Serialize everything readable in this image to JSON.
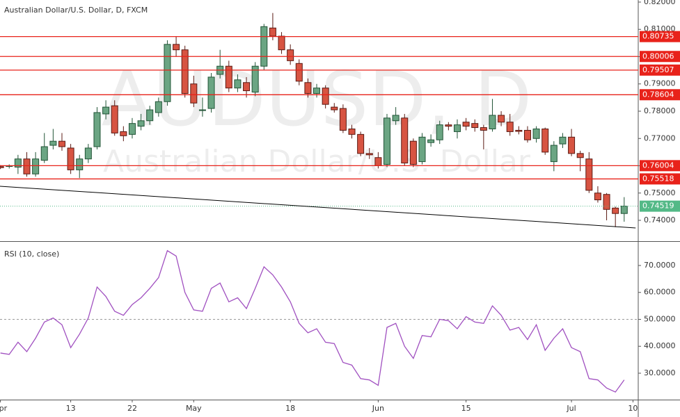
{
  "chart_data": [
    {
      "type": "candlestick",
      "title": "Australian Dollar/U.S. Dollar, D, FXCM",
      "watermark": "AUDUSD, D",
      "watermark_subtitle": "Australian Dollar/U.S. Dollar",
      "xlim": [
        -0.05,
        72.6
      ],
      "ylim": [
        0.73236,
        0.82076
      ],
      "yticks": [
        {
          "value": 0.82,
          "label": "0.82000"
        },
        {
          "value": 0.81,
          "label": "0.81000"
        },
        {
          "value": 0.8,
          "label": "0.80000"
        },
        {
          "value": 0.79,
          "label": "0.79000"
        },
        {
          "value": 0.78,
          "label": "0.78000"
        },
        {
          "value": 0.77,
          "label": "0.77000"
        },
        {
          "value": 0.76,
          "label": "0.76000"
        },
        {
          "value": 0.75,
          "label": "0.75000"
        },
        {
          "value": 0.74,
          "label": "0.74000"
        }
      ],
      "up_color": "#6ba583",
      "down_color": "#d75442",
      "open": [
        0.7597,
        0.7598,
        0.7595,
        0.7625,
        0.757,
        0.762,
        0.7675,
        0.769,
        0.7665,
        0.7585,
        0.7625,
        0.767,
        0.779,
        0.782,
        0.7725,
        0.7715,
        0.7745,
        0.7765,
        0.7795,
        0.7835,
        0.8045,
        0.8025,
        0.79,
        0.7805,
        0.781,
        0.7935,
        0.7965,
        0.7885,
        0.7905,
        0.787,
        0.7965,
        0.8105,
        0.8075,
        0.8025,
        0.7975,
        0.7905,
        0.7865,
        0.7885,
        0.7815,
        0.781,
        0.7735,
        0.7715,
        0.7645,
        0.763,
        0.7605,
        0.7765,
        0.7775,
        0.769,
        0.7615,
        0.7685,
        0.7695,
        0.775,
        0.7725,
        0.776,
        0.7755,
        0.774,
        0.7735,
        0.7785,
        0.776,
        0.773,
        0.773,
        0.77,
        0.7735,
        0.7615,
        0.768,
        0.7705,
        0.7645,
        0.7625,
        0.75,
        0.7495,
        0.7445,
        0.7425
      ],
      "high": [
        0.7602,
        0.7605,
        0.764,
        0.765,
        0.765,
        0.772,
        0.7735,
        0.772,
        0.768,
        0.764,
        0.768,
        0.7815,
        0.784,
        0.784,
        0.7745,
        0.7775,
        0.779,
        0.782,
        0.785,
        0.806,
        0.8075,
        0.804,
        0.793,
        0.785,
        0.794,
        0.8025,
        0.7985,
        0.7935,
        0.7925,
        0.798,
        0.812,
        0.816,
        0.809,
        0.8045,
        0.799,
        0.792,
        0.79,
        0.7895,
        0.783,
        0.7825,
        0.775,
        0.7725,
        0.7665,
        0.765,
        0.779,
        0.7815,
        0.779,
        0.77,
        0.772,
        0.7715,
        0.7765,
        0.776,
        0.777,
        0.7775,
        0.777,
        0.775,
        0.7845,
        0.78,
        0.779,
        0.7745,
        0.7745,
        0.7745,
        0.774,
        0.769,
        0.772,
        0.7735,
        0.7655,
        0.765,
        0.7525,
        0.75,
        0.745,
        0.7485
      ],
      "low": [
        0.7588,
        0.759,
        0.757,
        0.756,
        0.756,
        0.761,
        0.766,
        0.7655,
        0.757,
        0.7555,
        0.761,
        0.766,
        0.777,
        0.771,
        0.769,
        0.77,
        0.773,
        0.775,
        0.778,
        0.782,
        0.8,
        0.785,
        0.7815,
        0.778,
        0.7795,
        0.792,
        0.787,
        0.787,
        0.785,
        0.7855,
        0.795,
        0.806,
        0.801,
        0.797,
        0.7895,
        0.785,
        0.785,
        0.781,
        0.7795,
        0.772,
        0.77,
        0.7635,
        0.7625,
        0.759,
        0.7595,
        0.775,
        0.76,
        0.7595,
        0.7605,
        0.767,
        0.768,
        0.773,
        0.77,
        0.773,
        0.7725,
        0.766,
        0.7725,
        0.7745,
        0.771,
        0.7715,
        0.7685,
        0.7685,
        0.764,
        0.758,
        0.7665,
        0.7635,
        0.758,
        0.75,
        0.7465,
        0.74,
        0.7375,
        0.7395
      ],
      "close": [
        0.7593,
        0.76,
        0.7625,
        0.757,
        0.7625,
        0.767,
        0.769,
        0.767,
        0.7585,
        0.7625,
        0.7665,
        0.7795,
        0.7815,
        0.772,
        0.771,
        0.7755,
        0.7765,
        0.7805,
        0.7835,
        0.8045,
        0.8025,
        0.7865,
        0.783,
        0.7805,
        0.7925,
        0.7965,
        0.7885,
        0.7915,
        0.7875,
        0.7965,
        0.811,
        0.8075,
        0.8025,
        0.7985,
        0.791,
        0.7865,
        0.7885,
        0.7825,
        0.7805,
        0.773,
        0.7715,
        0.7645,
        0.764,
        0.76,
        0.7775,
        0.7785,
        0.761,
        0.7605,
        0.7705,
        0.7695,
        0.775,
        0.7745,
        0.775,
        0.7745,
        0.774,
        0.773,
        0.7785,
        0.776,
        0.7725,
        0.7726,
        0.7695,
        0.7735,
        0.765,
        0.7675,
        0.7705,
        0.7645,
        0.763,
        0.751,
        0.7475,
        0.744,
        0.7425,
        0.7452
      ],
      "levels": [
        0.80735,
        0.80006,
        0.79507,
        0.78604,
        0.76004,
        0.75518
      ],
      "level_color": "#e8221a",
      "last_price": 0.74519,
      "last_color": "#53b987",
      "trendline": {
        "x": [
          -0.05,
          72.3
        ],
        "y": [
          0.7525,
          0.7372
        ]
      }
    },
    {
      "type": "line",
      "title": "RSI (10, close)",
      "xlim": [
        -0.05,
        72.6
      ],
      "ylim": [
        20.19,
        78.77
      ],
      "xticks": [
        {
          "value": 0,
          "label": "Apr"
        },
        {
          "value": 8,
          "label": "13"
        },
        {
          "value": 15,
          "label": "22"
        },
        {
          "value": 22,
          "label": "May"
        },
        {
          "value": 33,
          "label": "18"
        },
        {
          "value": 43,
          "label": "Jun"
        },
        {
          "value": 53,
          "label": "15"
        },
        {
          "value": 65,
          "label": "Jul"
        },
        {
          "value": 72,
          "label": "10"
        }
      ],
      "yticks": [
        {
          "value": 30,
          "label": "30.0000"
        },
        {
          "value": 40,
          "label": "40.0000"
        },
        {
          "value": 50,
          "label": "50.0000"
        },
        {
          "value": 60,
          "label": "60.0000"
        },
        {
          "value": 70,
          "label": "70.0000"
        }
      ],
      "hline": 50,
      "series": [
        {
          "color": "#a050c0",
          "values": [
            37.5,
            37,
            41.5,
            38,
            43,
            49,
            50.5,
            48,
            39.5,
            44.5,
            50.5,
            62,
            58.5,
            53,
            51.5,
            55.5,
            58,
            61.5,
            65.5,
            75.5,
            73.5,
            60,
            53.5,
            53,
            61.5,
            63.5,
            56.5,
            58,
            54,
            61.5,
            69.5,
            66.5,
            62,
            56.5,
            48.5,
            45,
            46.5,
            41.5,
            41,
            34,
            33,
            28,
            27.5,
            25.5,
            47,
            48.5,
            40,
            35.5,
            44,
            43.5,
            50,
            49.5,
            46.5,
            51,
            49,
            48.5,
            55,
            51.5,
            46,
            47,
            42.5,
            48,
            38.5,
            43,
            46.5,
            39.5,
            38,
            28,
            27.5,
            24.5,
            23,
            27.5
          ]
        }
      ]
    }
  ]
}
